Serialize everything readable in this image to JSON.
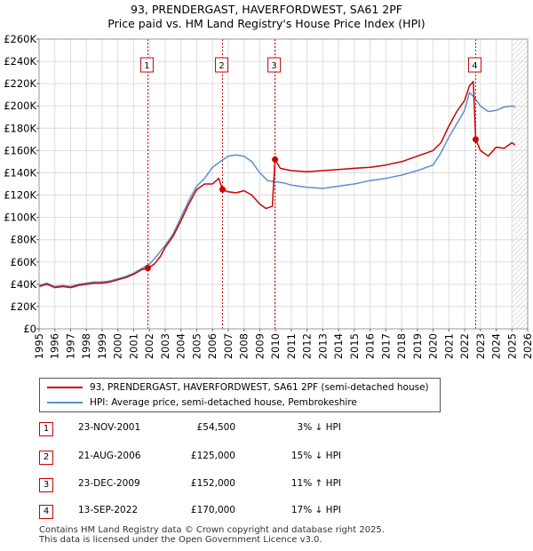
{
  "title_line1": "93, PRENDERGAST, HAVERFORDWEST, SA61 2PF",
  "title_line2": "Price paid vs. HM Land Registry's House Price Index (HPI)",
  "chart_data": {
    "type": "line",
    "xlim": [
      1995,
      2026
    ],
    "ylim": [
      0,
      260000
    ],
    "x_ticks": [
      1995,
      1996,
      1997,
      1998,
      1999,
      2000,
      2001,
      2002,
      2003,
      2004,
      2005,
      2006,
      2007,
      2008,
      2009,
      2010,
      2011,
      2012,
      2013,
      2014,
      2015,
      2016,
      2017,
      2018,
      2019,
      2020,
      2021,
      2022,
      2023,
      2024,
      2025,
      2026
    ],
    "y_ticks": [
      {
        "value": 0,
        "label": "£0"
      },
      {
        "value": 20000,
        "label": "£20K"
      },
      {
        "value": 40000,
        "label": "£40K"
      },
      {
        "value": 60000,
        "label": "£60K"
      },
      {
        "value": 80000,
        "label": "£80K"
      },
      {
        "value": 100000,
        "label": "£100K"
      },
      {
        "value": 120000,
        "label": "£120K"
      },
      {
        "value": 140000,
        "label": "£140K"
      },
      {
        "value": 160000,
        "label": "£160K"
      },
      {
        "value": 180000,
        "label": "£180K"
      },
      {
        "value": 200000,
        "label": "£200K"
      },
      {
        "value": 220000,
        "label": "£220K"
      },
      {
        "value": 240000,
        "label": "£240K"
      },
      {
        "value": 260000,
        "label": "£260K"
      }
    ],
    "hatch_from": 2025.0,
    "series": [
      {
        "name": "93, PRENDERGAST, HAVERFORDWEST, SA61 2PF (semi-detached house)",
        "color": "#cc0000",
        "x": [
          1995,
          1995.5,
          1996,
          1996.5,
          1997,
          1997.5,
          1998,
          1998.5,
          1999,
          1999.5,
          2000,
          2000.5,
          2001,
          2001.5,
          2001.9,
          2002.3,
          2002.7,
          2003,
          2003.5,
          2004,
          2004.5,
          2005,
          2005.5,
          2006,
          2006.4,
          2006.64,
          2007,
          2007.5,
          2008,
          2008.5,
          2009,
          2009.4,
          2009.8,
          2009.97,
          2010.3,
          2011,
          2012,
          2013,
          2014,
          2015,
          2016,
          2017,
          2018,
          2019,
          2020,
          2020.5,
          2021,
          2021.5,
          2022,
          2022.3,
          2022.55,
          2022.7,
          2023,
          2023.5,
          2024,
          2024.5,
          2025,
          2025.2
        ],
        "y": [
          38000,
          40000,
          37000,
          38000,
          37000,
          39000,
          40000,
          41000,
          41000,
          42000,
          44000,
          46000,
          49000,
          53000,
          54500,
          58000,
          65000,
          73000,
          83000,
          97000,
          112000,
          125000,
          130000,
          130000,
          135000,
          125000,
          123000,
          122000,
          124000,
          120000,
          112000,
          108000,
          110000,
          152000,
          144000,
          142000,
          141000,
          142000,
          143000,
          144000,
          145000,
          147000,
          150000,
          155000,
          160000,
          167000,
          182000,
          195000,
          205000,
          218000,
          222000,
          170000,
          160000,
          155000,
          163000,
          162000,
          167000,
          165000
        ]
      },
      {
        "name": "HPI: Average price, semi-detached house, Pembrokeshire",
        "color": "#5b8fd0",
        "x": [
          1995,
          1995.5,
          1996,
          1996.5,
          1997,
          1997.5,
          1998,
          1998.5,
          1999,
          1999.5,
          2000,
          2000.5,
          2001,
          2001.5,
          2002,
          2002.5,
          2003,
          2003.5,
          2004,
          2004.5,
          2005,
          2005.5,
          2006,
          2006.5,
          2007,
          2007.5,
          2008,
          2008.5,
          2009,
          2009.5,
          2010,
          2010.5,
          2011,
          2012,
          2013,
          2014,
          2015,
          2016,
          2017,
          2018,
          2019,
          2020,
          2020.5,
          2021,
          2021.5,
          2022,
          2022.3,
          2022.6,
          2023,
          2023.5,
          2024,
          2024.5,
          2025,
          2025.2
        ],
        "y": [
          39000,
          41000,
          38000,
          39000,
          38000,
          40000,
          41000,
          42000,
          42000,
          43000,
          45000,
          47000,
          50000,
          54000,
          58000,
          66000,
          75000,
          85000,
          100000,
          115000,
          128000,
          135000,
          145000,
          150000,
          155000,
          156000,
          155000,
          150000,
          140000,
          133000,
          132000,
          131000,
          129000,
          127000,
          126000,
          128000,
          130000,
          133000,
          135000,
          138000,
          142000,
          147000,
          158000,
          172000,
          184000,
          196000,
          212000,
          208000,
          200000,
          195000,
          196000,
          199000,
          200000,
          199000
        ]
      }
    ],
    "markers": [
      {
        "label": "1",
        "x": 2001.9,
        "y": 54500
      },
      {
        "label": "2",
        "x": 2006.64,
        "y": 125000
      },
      {
        "label": "3",
        "x": 2009.97,
        "y": 152000
      },
      {
        "label": "4",
        "x": 2022.7,
        "y": 170000
      }
    ]
  },
  "legend": {
    "items": [
      {
        "label": "93, PRENDERGAST, HAVERFORDWEST, SA61 2PF (semi-detached house)",
        "color": "#cc0000"
      },
      {
        "label": "HPI: Average price, semi-detached house, Pembrokeshire",
        "color": "#5b8fd0"
      }
    ]
  },
  "sales": [
    {
      "num": "1",
      "date": "23-NOV-2001",
      "price": "£54,500",
      "hpi": "3% ↓ HPI"
    },
    {
      "num": "2",
      "date": "21-AUG-2006",
      "price": "£125,000",
      "hpi": "15% ↓ HPI"
    },
    {
      "num": "3",
      "date": "23-DEC-2009",
      "price": "£152,000",
      "hpi": "11% ↑ HPI"
    },
    {
      "num": "4",
      "date": "13-SEP-2022",
      "price": "£170,000",
      "hpi": "17% ↓ HPI"
    }
  ],
  "footer_line1": "Contains HM Land Registry data © Crown copyright and database right 2025.",
  "footer_line2": "This data is licensed under the Open Government Licence v3.0."
}
